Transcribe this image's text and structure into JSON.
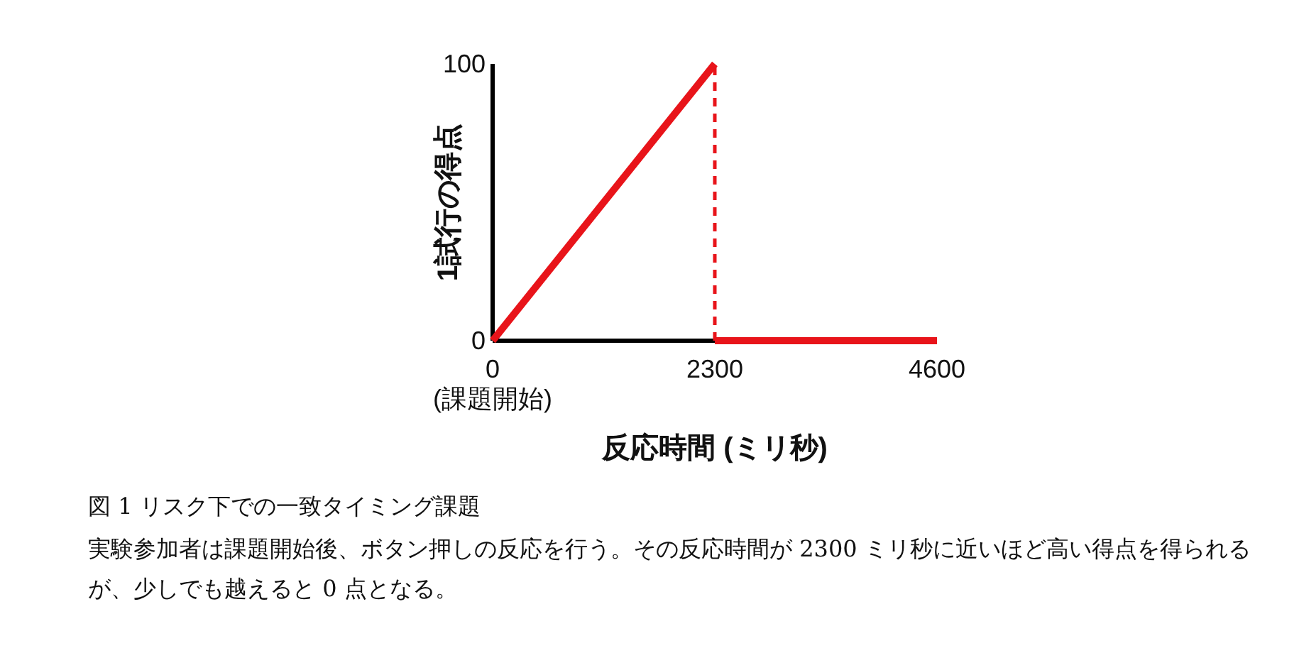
{
  "chart_data": {
    "type": "line",
    "xlabel": "反応時間 (ミリ秒)",
    "ylabel": "1試行の得点",
    "series": [
      {
        "color": "#e8141a",
        "x": [
          0,
          2300
        ],
        "values": [
          0,
          100
        ]
      },
      {
        "color": "#e8141a",
        "x": [
          2300,
          2300
        ],
        "values": [
          0,
          100
        ],
        "line_style": "dashed"
      },
      {
        "color": "#e8141a",
        "x": [
          2300,
          4600
        ],
        "values": [
          0,
          0
        ]
      }
    ],
    "xlim": [
      0,
      4600
    ],
    "ylim": [
      0,
      100
    ],
    "xticks": [
      {
        "value": 0,
        "label": "0\n(課題開始)"
      },
      2300,
      4600
    ],
    "yticks": [
      0,
      100
    ],
    "line_style": "solid",
    "annotations": [
      "図 1 リスク下での一致タイミング課題",
      "実験参加者は課題開始後、ボタン押しの反応を行う。その反応時間が 2300 ミリ秒に近いほど高い得点を得られるが、少しでも越えると 0 点となる。"
    ]
  }
}
